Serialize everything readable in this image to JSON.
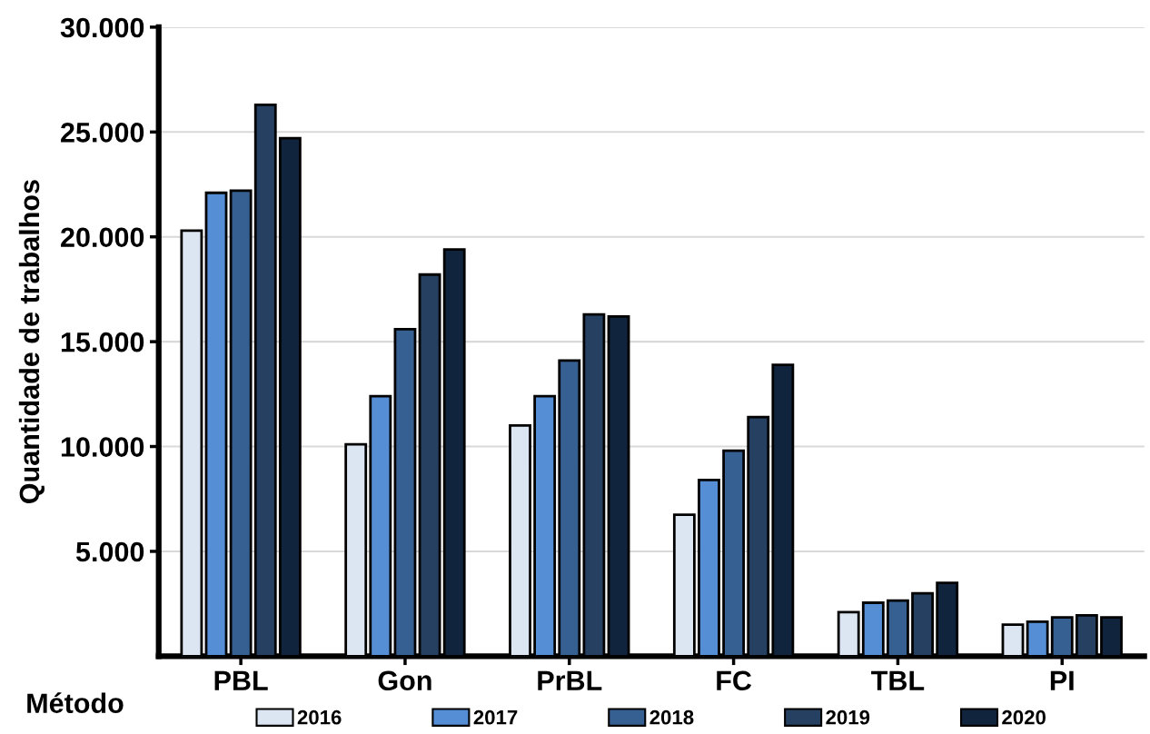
{
  "chart_data": {
    "type": "bar",
    "ylabel": "Quantidade de trabalhos",
    "xlabel": "Método",
    "categories": [
      "PBL",
      "Gon",
      "PrBL",
      "FC",
      "TBL",
      "PI"
    ],
    "series": [
      {
        "name": "2016",
        "color": "#dce6f2",
        "values": [
          20300,
          10100,
          11000,
          6750,
          2100,
          1500
        ]
      },
      {
        "name": "2017",
        "color": "#558ed5",
        "values": [
          22100,
          12400,
          12400,
          8400,
          2550,
          1650
        ]
      },
      {
        "name": "2018",
        "color": "#376092",
        "values": [
          22200,
          15600,
          14100,
          9800,
          2650,
          1850
        ]
      },
      {
        "name": "2019",
        "color": "#254061",
        "values": [
          26300,
          18200,
          16300,
          11400,
          3000,
          1950
        ]
      },
      {
        "name": "2020",
        "color": "#10243e",
        "values": [
          24700,
          19400,
          16200,
          13900,
          3500,
          1850
        ]
      }
    ],
    "ylim": [
      0,
      30000
    ],
    "yticks": [
      {
        "value": 5000,
        "label": "5.000"
      },
      {
        "value": 10000,
        "label": "10.000"
      },
      {
        "value": 15000,
        "label": "15.000"
      },
      {
        "value": 20000,
        "label": "20.000"
      },
      {
        "value": 25000,
        "label": "25.000"
      },
      {
        "value": 30000,
        "label": "30.000"
      }
    ],
    "grid": "y",
    "legend": "bottom"
  }
}
